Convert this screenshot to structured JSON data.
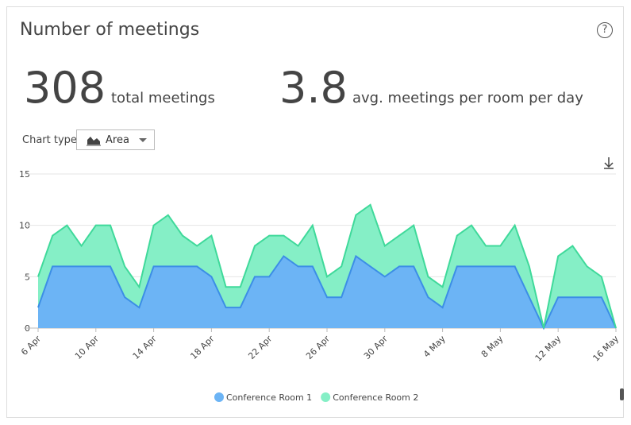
{
  "header": {
    "title": "Number of meetings"
  },
  "stats": [
    {
      "value": 308,
      "label": "total meetings"
    },
    {
      "value": 3.8,
      "label": "avg. meetings per room per day"
    }
  ],
  "control": {
    "label": "Chart type",
    "value": "Area"
  },
  "chart_data": {
    "type": "area",
    "stacked": true,
    "grid": true,
    "categories": [
      "6 Apr",
      null,
      null,
      null,
      "10 Apr",
      null,
      null,
      null,
      "14 Apr",
      null,
      null,
      null,
      "18 Apr",
      null,
      null,
      null,
      "22 Apr",
      null,
      null,
      null,
      "26 Apr",
      null,
      null,
      null,
      "30 Apr",
      null,
      null,
      null,
      "4 May",
      null,
      null,
      null,
      "8 May",
      null,
      null,
      null,
      "12 May",
      null,
      null,
      null,
      "16 May"
    ],
    "series": [
      {
        "name": "Conference Room 1",
        "color": "#3c8ee6",
        "fill": "#6cb4f5",
        "values": [
          2,
          6,
          6,
          6,
          6,
          6,
          3,
          2,
          6,
          6,
          6,
          6,
          5,
          2,
          2,
          5,
          5,
          7,
          6,
          6,
          3,
          3,
          7,
          6,
          5,
          6,
          6,
          3,
          2,
          6,
          6,
          6,
          6,
          6,
          3,
          0,
          3,
          3,
          3,
          3,
          0
        ]
      },
      {
        "name": "Conference Room 2",
        "color": "#3fd99a",
        "fill": "#85efc6",
        "values": [
          3,
          3,
          4,
          2,
          4,
          4,
          3,
          2,
          4,
          5,
          3,
          2,
          4,
          2,
          2,
          3,
          4,
          2,
          2,
          4,
          2,
          3,
          4,
          6,
          3,
          3,
          4,
          2,
          2,
          3,
          4,
          2,
          2,
          4,
          3,
          0,
          4,
          5,
          3,
          2,
          0
        ]
      }
    ],
    "ylim": [
      0,
      15
    ],
    "yticks": [
      0,
      5,
      10,
      15
    ],
    "legend": "bottom"
  }
}
